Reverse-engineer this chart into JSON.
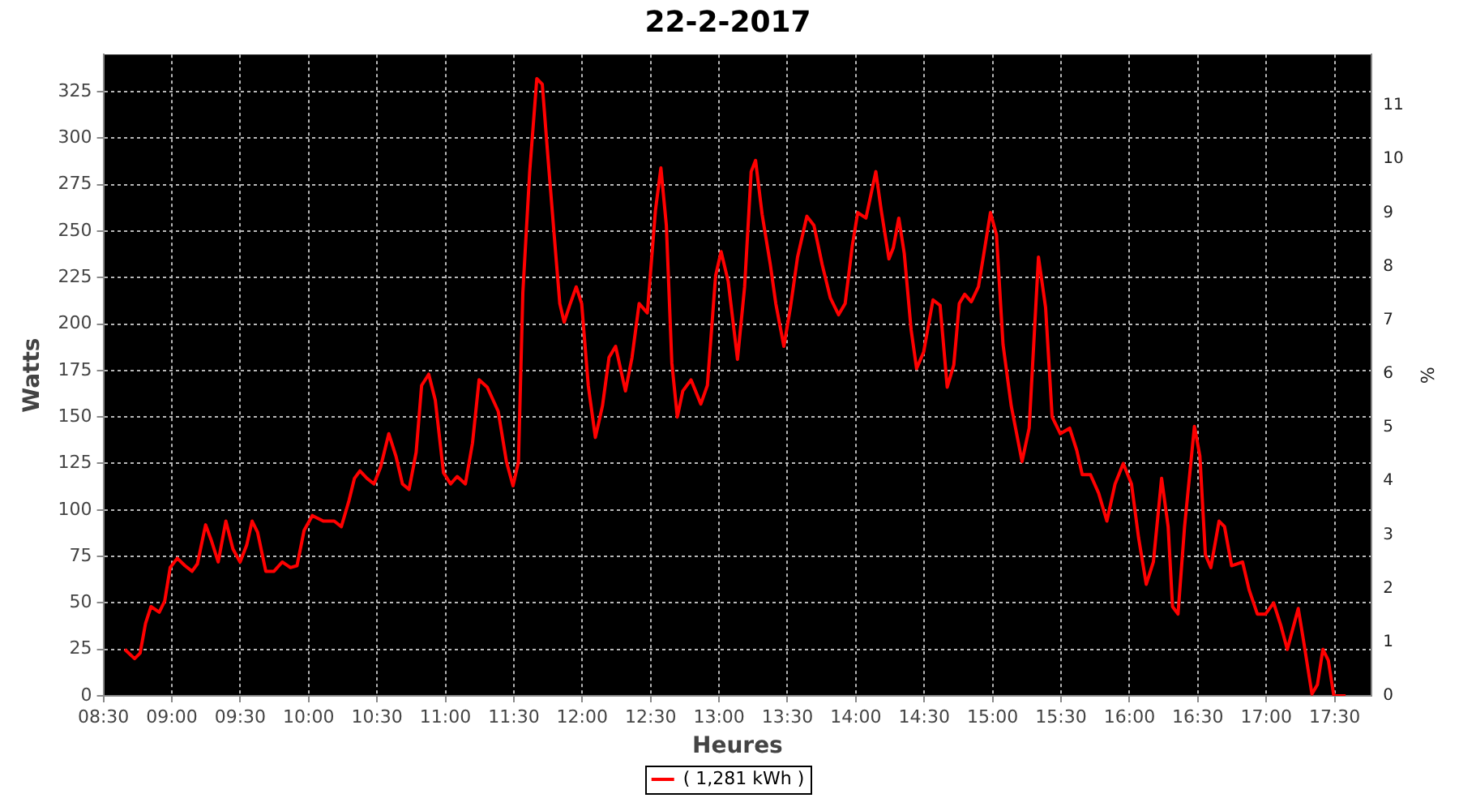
{
  "chart_data": {
    "type": "line",
    "title": "22-2-2017",
    "xlabel": "Heures",
    "ylabel": "Watts",
    "y2label": "%",
    "xlim": [
      8.5,
      17.77
    ],
    "xticks": [
      {
        "value": 8.5,
        "label": "08:30"
      },
      {
        "value": 9,
        "label": "09:00"
      },
      {
        "value": 9.5,
        "label": "09:30"
      },
      {
        "value": 10,
        "label": "10:00"
      },
      {
        "value": 10.5,
        "label": "10:30"
      },
      {
        "value": 11,
        "label": "11:00"
      },
      {
        "value": 11.5,
        "label": "11:30"
      },
      {
        "value": 12,
        "label": "12:00"
      },
      {
        "value": 12.5,
        "label": "12:30"
      },
      {
        "value": 13,
        "label": "13:00"
      },
      {
        "value": 13.5,
        "label": "13:30"
      },
      {
        "value": 14,
        "label": "14:00"
      },
      {
        "value": 14.5,
        "label": "14:30"
      },
      {
        "value": 15,
        "label": "15:00"
      },
      {
        "value": 15.5,
        "label": "15:30"
      },
      {
        "value": 16,
        "label": "16:00"
      },
      {
        "value": 16.5,
        "label": "16:30"
      },
      {
        "value": 17,
        "label": "17:00"
      },
      {
        "value": 17.5,
        "label": "17:30"
      }
    ],
    "ylim": [
      0,
      345
    ],
    "yticks": [
      0,
      25,
      50,
      75,
      100,
      125,
      150,
      175,
      200,
      225,
      250,
      275,
      300,
      325
    ],
    "y2lim": [
      0,
      11.95
    ],
    "y2ticks": [
      0,
      1,
      2,
      3,
      4,
      5,
      6,
      7,
      8,
      9,
      10,
      11
    ],
    "grid": true,
    "legend": "bottom",
    "series": [
      {
        "name": "( 1,281 kWh )",
        "color": "#ff0000",
        "x": [
          8.656,
          8.728,
          8.768,
          8.808,
          8.848,
          8.908,
          8.948,
          8.988,
          9.04,
          9.096,
          9.148,
          9.187,
          9.247,
          9.287,
          9.339,
          9.395,
          9.447,
          9.499,
          9.547,
          9.587,
          9.627,
          9.687,
          9.747,
          9.807,
          9.867,
          9.915,
          9.967,
          10.027,
          10.107,
          10.187,
          10.239,
          10.295,
          10.335,
          10.375,
          10.427,
          10.478,
          10.526,
          10.586,
          10.638,
          10.686,
          10.734,
          10.786,
          10.826,
          10.878,
          10.926,
          10.986,
          11.038,
          11.086,
          11.146,
          11.198,
          11.246,
          11.306,
          11.386,
          11.446,
          11.494,
          11.534,
          11.566,
          11.616,
          11.668,
          11.708,
          11.748,
          11.796,
          11.836,
          11.868,
          11.908,
          11.956,
          11.996,
          12.044,
          12.096,
          12.148,
          12.196,
          12.244,
          12.316,
          12.364,
          12.416,
          12.476,
          12.535,
          12.575,
          12.615,
          12.655,
          12.695,
          12.735,
          12.795,
          12.867,
          12.915,
          12.975,
          13.015,
          13.067,
          13.135,
          13.187,
          13.235,
          13.267,
          13.315,
          13.375,
          13.415,
          13.474,
          13.522,
          13.574,
          13.642,
          13.694,
          13.754,
          13.814,
          13.874,
          13.922,
          13.974,
          14.014,
          14.074,
          14.146,
          14.186,
          14.242,
          14.274,
          14.314,
          14.354,
          14.404,
          14.444,
          14.496,
          14.564,
          14.616,
          14.668,
          14.716,
          14.756,
          14.796,
          14.844,
          14.896,
          14.936,
          14.984,
          15.028,
          15.076,
          15.136,
          15.215,
          15.267,
          15.335,
          15.387,
          15.435,
          15.495,
          15.563,
          15.615,
          15.655,
          15.715,
          15.775,
          15.835,
          15.895,
          15.955,
          16.015,
          16.067,
          16.123,
          16.175,
          16.235,
          16.283,
          16.315,
          16.355,
          16.403,
          16.475,
          16.515,
          16.555,
          16.595,
          16.655,
          16.695,
          16.747,
          16.827,
          16.875,
          16.935,
          16.995,
          17.054,
          17.106,
          17.154,
          17.234,
          17.274,
          17.334,
          17.374,
          17.414,
          17.454,
          17.494,
          17.58
        ],
        "values": [
          25,
          20,
          23,
          39,
          48,
          45,
          51,
          69,
          74,
          70,
          67,
          71,
          92,
          84,
          72,
          94,
          79,
          72,
          81,
          94,
          88,
          67,
          67,
          72,
          69,
          70,
          89,
          97,
          94,
          94,
          91,
          105,
          117,
          121,
          117,
          114,
          123,
          141,
          129,
          114,
          111,
          131,
          167,
          173,
          159,
          120,
          114,
          118,
          114,
          136,
          170,
          166,
          153,
          126,
          113,
          126,
          217,
          282,
          332,
          329,
          291,
          247,
          211,
          201,
          210,
          220,
          211,
          167,
          139,
          156,
          182,
          188,
          164,
          182,
          211,
          206,
          261,
          284,
          253,
          179,
          150,
          164,
          170,
          157,
          167,
          226,
          239,
          223,
          181,
          220,
          282,
          288,
          259,
          232,
          211,
          188,
          209,
          236,
          258,
          253,
          232,
          214,
          205,
          211,
          242,
          260,
          257,
          282,
          261,
          235,
          241,
          257,
          238,
          197,
          176,
          185,
          213,
          210,
          166,
          178,
          211,
          216,
          212,
          220,
          238,
          260,
          248,
          189,
          156,
          126,
          144,
          236,
          209,
          150,
          141,
          144,
          132,
          119,
          119,
          109,
          94,
          114,
          125,
          114,
          85,
          60,
          72,
          117,
          91,
          48,
          44,
          91,
          145,
          129,
          76,
          69,
          94,
          91,
          70,
          72,
          57,
          44,
          44,
          50,
          38,
          25,
          47,
          29,
          1,
          6,
          25,
          19,
          0,
          0
        ]
      }
    ]
  }
}
